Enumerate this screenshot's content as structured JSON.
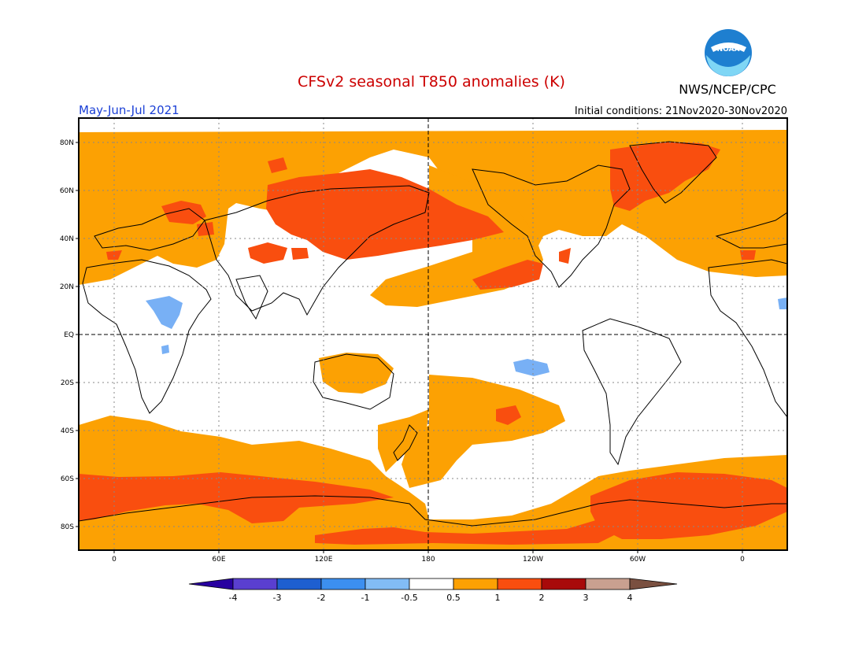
{
  "title": "CFSv2 seasonal T850 anomalies (K)",
  "period": "May-Jun-Jul 2021",
  "initial_conditions": "Initial conditions: 21Nov2020-30Nov2020",
  "source": "NWS/NCEP/CPC",
  "logo_text": "NOAA",
  "colors": {
    "title": "#cc0000",
    "period": "#1a3fd6",
    "anom_05_1": "#fca103",
    "anom_1_2": "#f94e0f",
    "anom_neg_05_1": "#78b0f5",
    "land_outline": "#000000"
  },
  "lat_labels": [
    "80N",
    "60N",
    "40N",
    "20N",
    "EQ",
    "20S",
    "40S",
    "60S",
    "80S"
  ],
  "lon_labels": [
    "0",
    "60E",
    "120E",
    "180",
    "120W",
    "60W",
    "0"
  ],
  "colorbar": {
    "labels": [
      "-4",
      "-3",
      "-2",
      "-1",
      "-0.5",
      "0.5",
      "1",
      "2",
      "3",
      "4"
    ],
    "colors": [
      "#2800a0",
      "#5a3fd0",
      "#1e5fd0",
      "#3c8ff0",
      "#82bcf5",
      "#ffffff",
      "#fca103",
      "#f94e0f",
      "#a80a0a",
      "#c9a090",
      "#7a5040"
    ]
  }
}
